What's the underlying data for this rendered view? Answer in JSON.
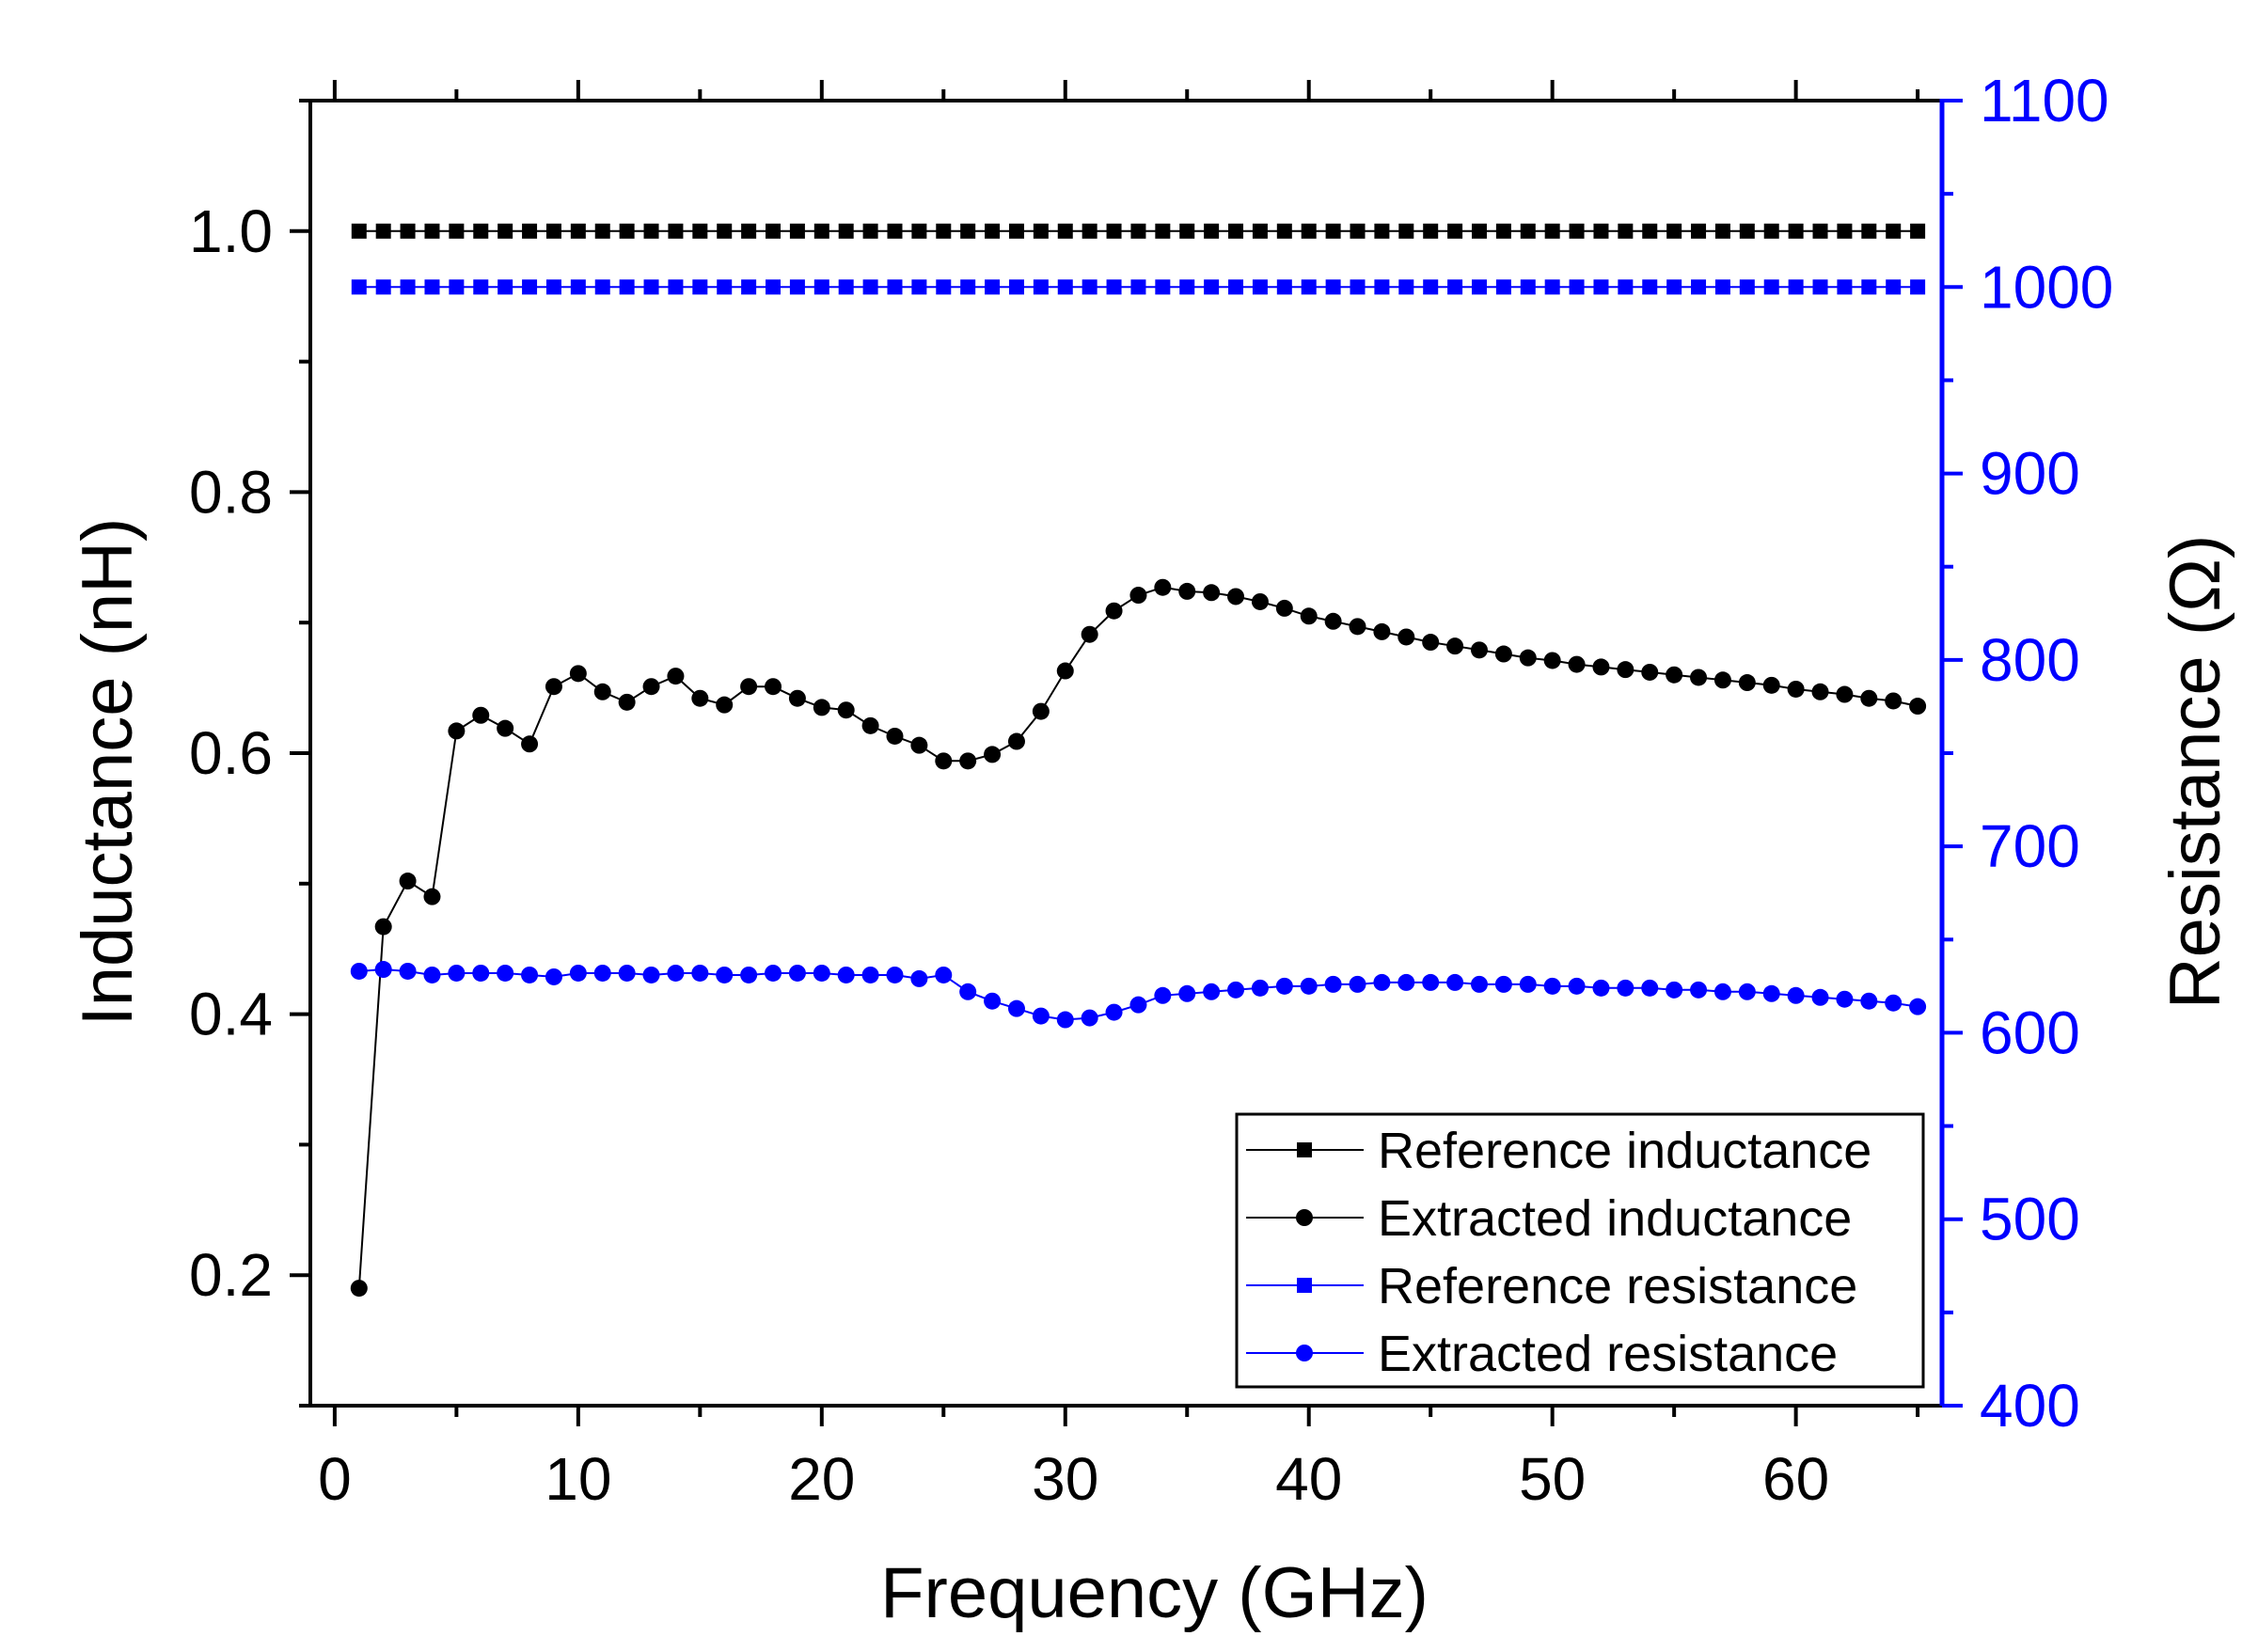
{
  "chart_data": {
    "type": "line",
    "title": "",
    "xlabel": "Frequency (GHz)",
    "ylabel_left": "Inductance (nH)",
    "ylabel_right": "Resistance (Ω)",
    "xlim": [
      -1,
      66
    ],
    "ylim_left": [
      0.1,
      1.1
    ],
    "ylim_right": [
      400,
      1100
    ],
    "x_ticks": [
      0,
      10,
      20,
      30,
      40,
      50,
      60
    ],
    "y_left_ticks": [
      0.2,
      0.4,
      0.6,
      0.8,
      1.0
    ],
    "y_left_tick_labels": [
      "0.2",
      "0.4",
      "0.6",
      "0.8",
      "1.0"
    ],
    "y_right_ticks": [
      400,
      500,
      600,
      700,
      800,
      900,
      1000,
      1100
    ],
    "grid": false,
    "legend_position": "bottom-right",
    "x": [
      1,
      2,
      3,
      4,
      5,
      6,
      7,
      8,
      9,
      10,
      11,
      12,
      13,
      14,
      15,
      16,
      17,
      18,
      19,
      20,
      21,
      22,
      23,
      24,
      25,
      26,
      27,
      28,
      29,
      30,
      31,
      32,
      33,
      34,
      35,
      36,
      37,
      38,
      39,
      40,
      41,
      42,
      43,
      44,
      45,
      46,
      47,
      48,
      49,
      50,
      51,
      52,
      53,
      54,
      55,
      56,
      57,
      58,
      59,
      60,
      61,
      62,
      63,
      64,
      65
    ],
    "series": [
      {
        "name": "Reference inductance",
        "axis": "left",
        "marker": "square",
        "color": "#000000",
        "values": [
          1.0,
          1.0,
          1.0,
          1.0,
          1.0,
          1.0,
          1.0,
          1.0,
          1.0,
          1.0,
          1.0,
          1.0,
          1.0,
          1.0,
          1.0,
          1.0,
          1.0,
          1.0,
          1.0,
          1.0,
          1.0,
          1.0,
          1.0,
          1.0,
          1.0,
          1.0,
          1.0,
          1.0,
          1.0,
          1.0,
          1.0,
          1.0,
          1.0,
          1.0,
          1.0,
          1.0,
          1.0,
          1.0,
          1.0,
          1.0,
          1.0,
          1.0,
          1.0,
          1.0,
          1.0,
          1.0,
          1.0,
          1.0,
          1.0,
          1.0,
          1.0,
          1.0,
          1.0,
          1.0,
          1.0,
          1.0,
          1.0,
          1.0,
          1.0,
          1.0,
          1.0,
          1.0,
          1.0,
          1.0,
          1.0
        ]
      },
      {
        "name": "Extracted inductance",
        "axis": "left",
        "marker": "circle",
        "color": "#000000",
        "values": [
          0.19,
          0.467,
          0.502,
          0.49,
          0.617,
          0.629,
          0.619,
          0.607,
          0.651,
          0.661,
          0.647,
          0.639,
          0.651,
          0.659,
          0.642,
          0.637,
          0.651,
          0.651,
          0.642,
          0.635,
          0.633,
          0.621,
          0.613,
          0.606,
          0.594,
          0.594,
          0.599,
          0.609,
          0.632,
          0.663,
          0.691,
          0.709,
          0.721,
          0.727,
          0.724,
          0.723,
          0.72,
          0.716,
          0.711,
          0.705,
          0.701,
          0.697,
          0.693,
          0.689,
          0.685,
          0.682,
          0.679,
          0.676,
          0.673,
          0.671,
          0.668,
          0.666,
          0.664,
          0.662,
          0.66,
          0.658,
          0.656,
          0.654,
          0.652,
          0.649,
          0.647,
          0.645,
          0.642,
          0.64,
          0.636
        ]
      },
      {
        "name": "Reference resistance",
        "axis": "right",
        "marker": "square",
        "color": "#0000ff",
        "values": [
          1000,
          1000,
          1000,
          1000,
          1000,
          1000,
          1000,
          1000,
          1000,
          1000,
          1000,
          1000,
          1000,
          1000,
          1000,
          1000,
          1000,
          1000,
          1000,
          1000,
          1000,
          1000,
          1000,
          1000,
          1000,
          1000,
          1000,
          1000,
          1000,
          1000,
          1000,
          1000,
          1000,
          1000,
          1000,
          1000,
          1000,
          1000,
          1000,
          1000,
          1000,
          1000,
          1000,
          1000,
          1000,
          1000,
          1000,
          1000,
          1000,
          1000,
          1000,
          1000,
          1000,
          1000,
          1000,
          1000,
          1000,
          1000,
          1000,
          1000,
          1000,
          1000,
          1000,
          1000,
          1000
        ]
      },
      {
        "name": "Extracted resistance",
        "axis": "right",
        "marker": "circle",
        "color": "#0000ff",
        "values": [
          633,
          634,
          633,
          631,
          632,
          632,
          632,
          631,
          630,
          632,
          632,
          632,
          631,
          632,
          632,
          631,
          631,
          632,
          632,
          632,
          631,
          631,
          631,
          629,
          631,
          622,
          617,
          613,
          609,
          607,
          608,
          611,
          615,
          620,
          621,
          622,
          623,
          624,
          625,
          625,
          626,
          626,
          627,
          627,
          627,
          627,
          626,
          626,
          626,
          625,
          625,
          624,
          624,
          624,
          623,
          623,
          622,
          622,
          621,
          620,
          619,
          618,
          617,
          616,
          614
        ]
      }
    ]
  }
}
